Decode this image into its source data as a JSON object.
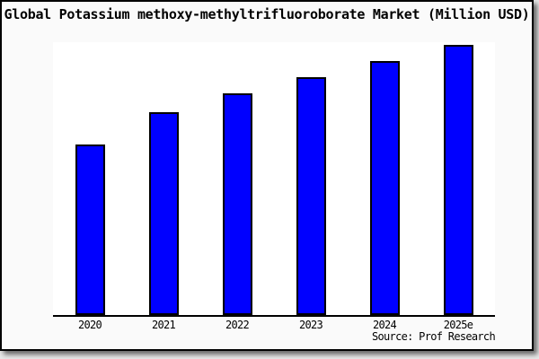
{
  "title": "Global Potassium methoxy-methyltrifluoroborate Market (Million USD)",
  "source_label": "Source: Prof Research",
  "colors": {
    "bar_fill": "#0000ff",
    "bar_border": "#000000",
    "plot_background": "#ffffff",
    "canvas_background": "#fafafa",
    "frame_border": "#000000"
  },
  "chart_data": {
    "type": "bar",
    "title": "Global Potassium methoxy-methyltrifluoroborate Market (Million USD)",
    "categories": [
      "2020",
      "2021",
      "2022",
      "2023",
      "2024",
      "2025e"
    ],
    "values": [
      63,
      75,
      82,
      88,
      94,
      100
    ],
    "xlabel": "",
    "ylabel": "",
    "ylim": [
      0,
      101
    ],
    "grid": false,
    "legend": false,
    "y_axis_visible": false,
    "source": "Source: Prof Research"
  }
}
